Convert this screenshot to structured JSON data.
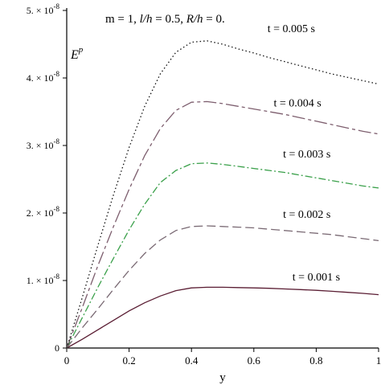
{
  "chart_data": {
    "type": "line",
    "title": "m = 1, l/h = 0.5, R/h = 0.",
    "title_parts": {
      "m": "m = 1, ",
      "lh_var": "l/h",
      "lh_val": " = 0.5, ",
      "rh_var": "R/h",
      "rh_val": " = 0."
    },
    "xlabel": "y",
    "ylabel": "E",
    "ylabel_sup": "p",
    "xlim": [
      0,
      1
    ],
    "ylim": [
      0,
      5e-08
    ],
    "grid": false,
    "x_ticks": [
      "0",
      "0.2",
      "0.4",
      "0.6",
      "0.8",
      "1"
    ],
    "x_tick_values": [
      0,
      0.2,
      0.4,
      0.6,
      0.8,
      1
    ],
    "y_ticks": [
      {
        "value": 0,
        "label": "0"
      },
      {
        "value": 1e-08,
        "mantissa": "1.",
        "base": "× 10",
        "exp": "-8"
      },
      {
        "value": 2e-08,
        "mantissa": "2.",
        "base": "× 10",
        "exp": "-8"
      },
      {
        "value": 3e-08,
        "mantissa": "3.",
        "base": "× 10",
        "exp": "-8"
      },
      {
        "value": 4e-08,
        "mantissa": "4.",
        "base": "× 10",
        "exp": "-8"
      },
      {
        "value": 5e-08,
        "mantissa": "5.",
        "base": "× 10",
        "exp": "-8"
      }
    ],
    "series": [
      {
        "name": "t = 0.001 s",
        "color": "#5a1d33",
        "dash": "",
        "x": [
          0,
          0.05,
          0.1,
          0.15,
          0.2,
          0.25,
          0.3,
          0.35,
          0.4,
          0.45,
          0.5,
          0.55,
          0.6,
          0.65,
          0.7,
          0.75,
          0.8,
          0.85,
          0.9,
          0.95,
          1
        ],
        "y": [
          0,
          1.3e-09,
          2.7e-09,
          4.1e-09,
          5.5e-09,
          6.7e-09,
          7.7e-09,
          8.5e-09,
          8.9e-09,
          9e-09,
          9e-09,
          8.95e-09,
          8.9e-09,
          8.85e-09,
          8.75e-09,
          8.65e-09,
          8.55e-09,
          8.4e-09,
          8.25e-09,
          8.1e-09,
          7.9e-09
        ]
      },
      {
        "name": "t = 0.002 s",
        "color": "#7a6a74",
        "dash": "11 5",
        "x": [
          0,
          0.05,
          0.1,
          0.15,
          0.2,
          0.25,
          0.3,
          0.35,
          0.4,
          0.45,
          0.5,
          0.55,
          0.6,
          0.65,
          0.7,
          0.75,
          0.8,
          0.85,
          0.9,
          0.95,
          1
        ],
        "y": [
          0,
          3e-09,
          5.8e-09,
          8.7e-09,
          1.15e-08,
          1.4e-08,
          1.6e-08,
          1.74e-08,
          1.8e-08,
          1.81e-08,
          1.8e-08,
          1.79e-08,
          1.78e-08,
          1.76e-08,
          1.74e-08,
          1.72e-08,
          1.7e-08,
          1.68e-08,
          1.65e-08,
          1.62e-08,
          1.59e-08
        ]
      },
      {
        "name": "t = 0.003 s",
        "color": "#3aa04a",
        "dash": "9 3 2 3",
        "x": [
          0,
          0.05,
          0.1,
          0.15,
          0.2,
          0.25,
          0.3,
          0.35,
          0.4,
          0.45,
          0.5,
          0.55,
          0.6,
          0.65,
          0.7,
          0.75,
          0.8,
          0.85,
          0.9,
          0.95,
          1
        ],
        "y": [
          0,
          4.5e-09,
          9e-09,
          1.33e-08,
          1.75e-08,
          2.13e-08,
          2.45e-08,
          2.63e-08,
          2.73e-08,
          2.74e-08,
          2.72e-08,
          2.69e-08,
          2.66e-08,
          2.63e-08,
          2.6e-08,
          2.56e-08,
          2.52e-08,
          2.48e-08,
          2.44e-08,
          2.4e-08,
          2.37e-08
        ]
      },
      {
        "name": "t = 0.004 s",
        "color": "#7d5e6e",
        "dash": "16 4 4 4",
        "x": [
          0,
          0.05,
          0.1,
          0.15,
          0.2,
          0.25,
          0.3,
          0.35,
          0.4,
          0.45,
          0.5,
          0.55,
          0.6,
          0.65,
          0.7,
          0.75,
          0.8,
          0.85,
          0.9,
          0.95,
          1
        ],
        "y": [
          0,
          6e-09,
          1.22e-08,
          1.8e-08,
          2.35e-08,
          2.85e-08,
          3.25e-08,
          3.52e-08,
          3.64e-08,
          3.65e-08,
          3.62e-08,
          3.58e-08,
          3.54e-08,
          3.5e-08,
          3.46e-08,
          3.41e-08,
          3.36e-08,
          3.31e-08,
          3.26e-08,
          3.21e-08,
          3.17e-08
        ]
      },
      {
        "name": "t = 0.005 s",
        "color": "#111111",
        "dash": "1.5 3",
        "x": [
          0,
          0.05,
          0.1,
          0.15,
          0.2,
          0.25,
          0.3,
          0.35,
          0.4,
          0.45,
          0.5,
          0.55,
          0.6,
          0.65,
          0.7,
          0.75,
          0.8,
          0.85,
          0.9,
          0.95,
          1
        ],
        "y": [
          0,
          7.5e-09,
          1.52e-08,
          2.27e-08,
          2.97e-08,
          3.58e-08,
          4.06e-08,
          4.38e-08,
          4.53e-08,
          4.55e-08,
          4.5e-08,
          4.43e-08,
          4.37e-08,
          4.3e-08,
          4.24e-08,
          4.18e-08,
          4.12e-08,
          4.06e-08,
          4.01e-08,
          3.96e-08,
          3.91e-08
        ]
      }
    ]
  }
}
